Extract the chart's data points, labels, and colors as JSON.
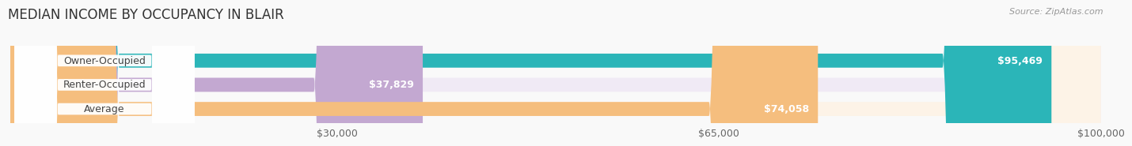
{
  "title": "MEDIAN INCOME BY OCCUPANCY IN BLAIR",
  "source": "Source: ZipAtlas.com",
  "categories": [
    "Owner-Occupied",
    "Renter-Occupied",
    "Average"
  ],
  "values": [
    95469,
    37829,
    74058
  ],
  "labels": [
    "$95,469",
    "$37,829",
    "$74,058"
  ],
  "bar_colors": [
    "#2bb5b8",
    "#c3a8d1",
    "#f5be7e"
  ],
  "bar_bg_colors": [
    "#e8f8f8",
    "#f0eaf5",
    "#fdf3e7"
  ],
  "xlim": [
    0,
    100000
  ],
  "xticks": [
    30000,
    65000,
    100000
  ],
  "xticklabels": [
    "$30,000",
    "$65,000",
    "$100,000"
  ],
  "background_color": "#f9f9f9",
  "title_fontsize": 12,
  "label_fontsize": 9,
  "tick_fontsize": 9,
  "bar_height": 0.58
}
